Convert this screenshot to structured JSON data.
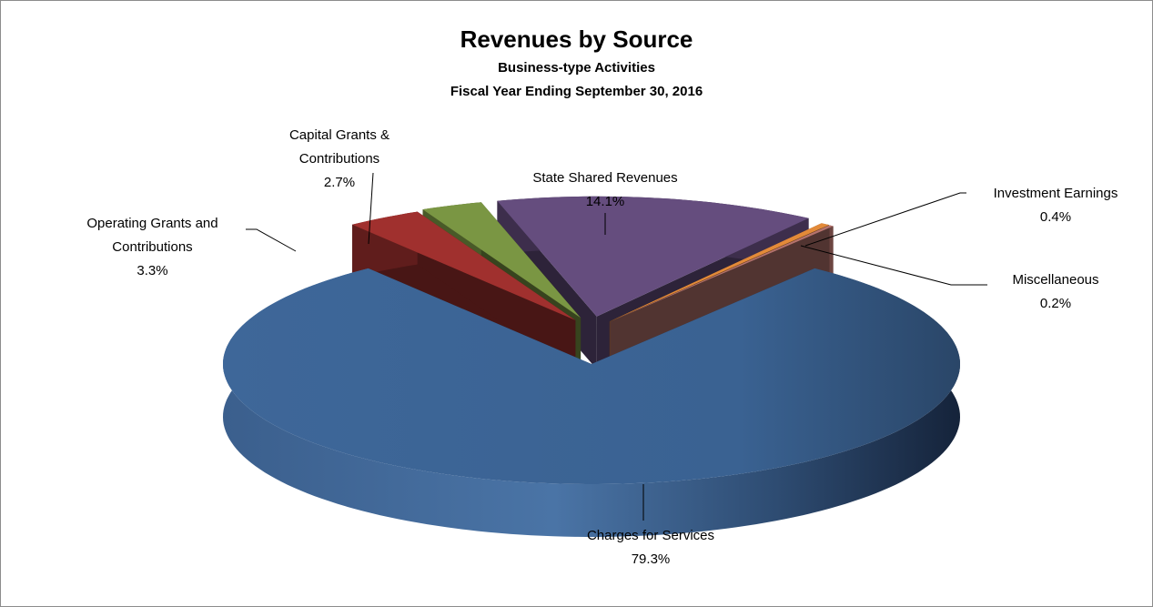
{
  "chart_data": {
    "type": "pie3d",
    "title": "Revenues by Source",
    "subtitle": [
      "Business-type Activities",
      "Fiscal Year Ending September 30, 2016"
    ],
    "categories": [
      "Charges for Services",
      "Operating Grants and Contributions",
      "Capital Grants & Contributions",
      "State Shared Revenues",
      "Investment Earnings",
      "Miscellaneous"
    ],
    "values": [
      79.3,
      3.3,
      2.7,
      14.1,
      0.4,
      0.2
    ],
    "value_labels": [
      "79.3%",
      "3.3%",
      "2.7%",
      "14.1%",
      "0.4%",
      "0.2%"
    ],
    "colors": [
      "#3f6797",
      "#a0302e",
      "#7a9643",
      "#654d7e",
      "#e38a39",
      "#b5736d"
    ]
  }
}
